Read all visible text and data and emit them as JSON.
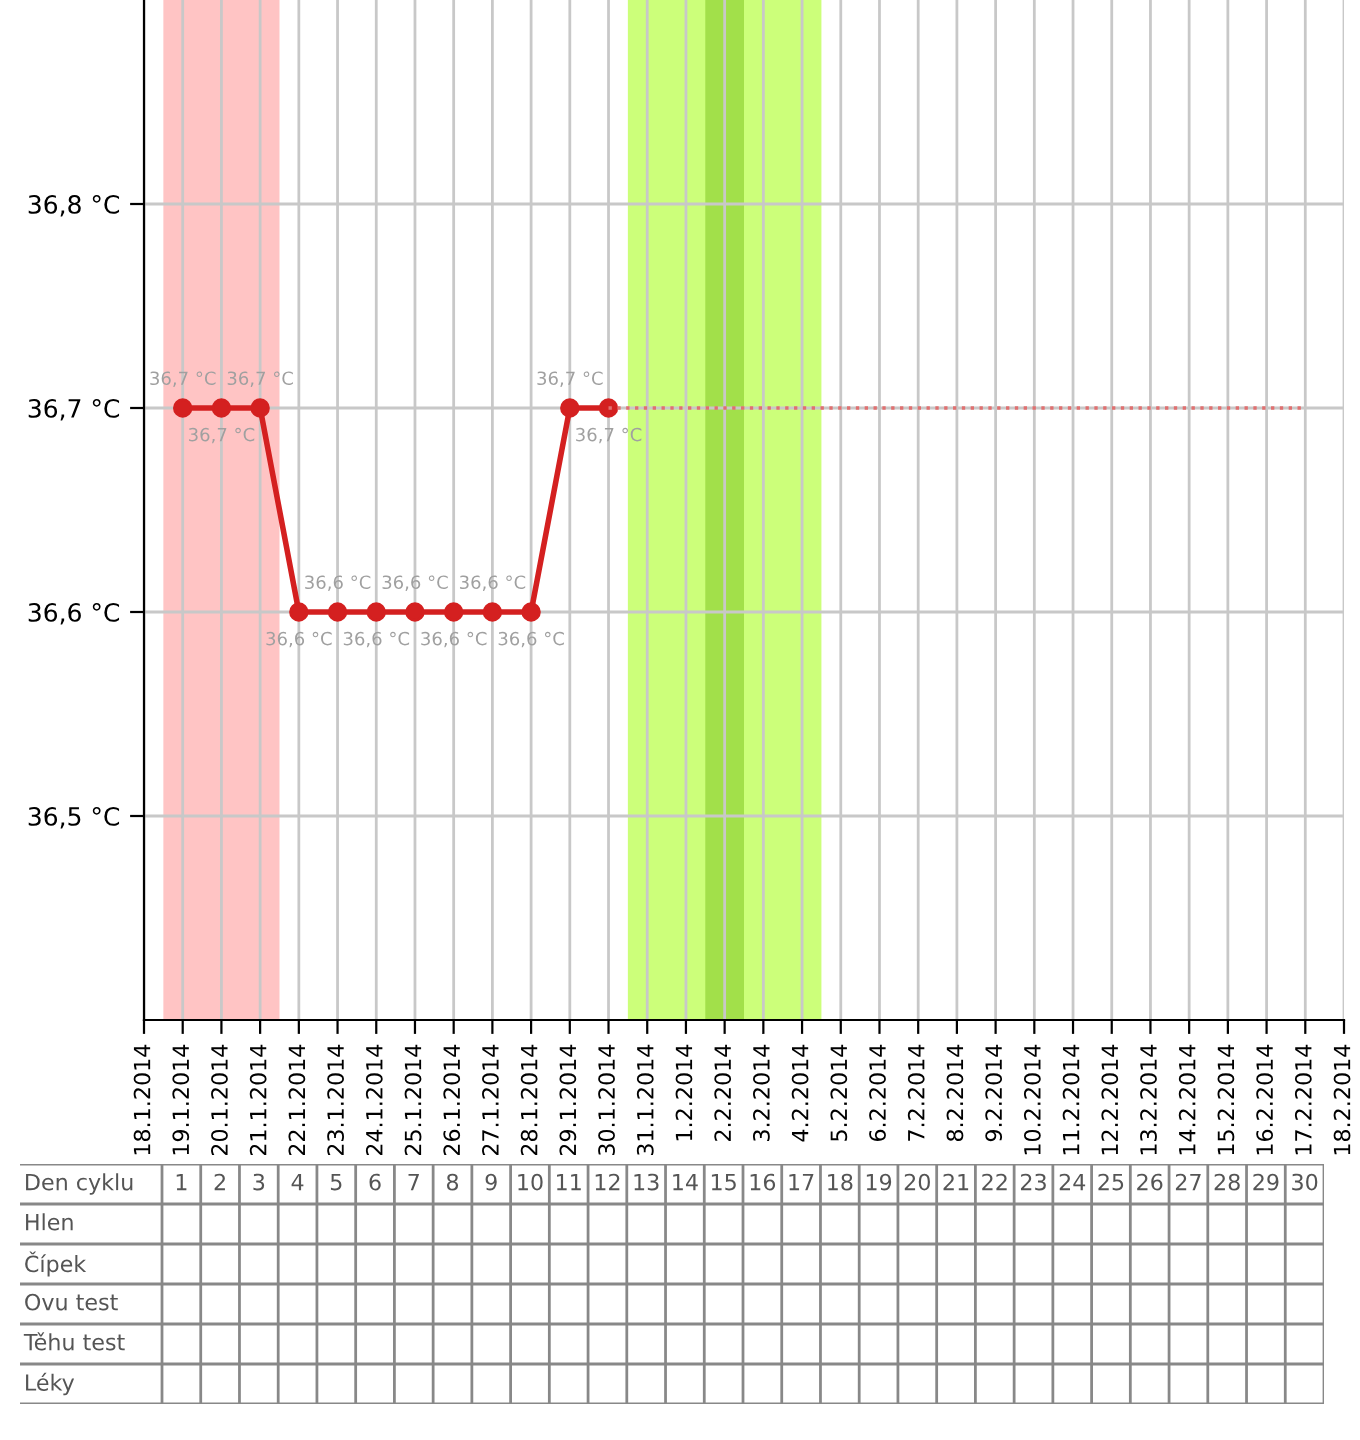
{
  "chart_data": [
    {
      "type": "line",
      "x": [
        "2014-01-19",
        "2014-01-20",
        "2014-01-21",
        "2014-01-22",
        "2014-01-23",
        "2014-01-24",
        "2014-01-25",
        "2014-01-26",
        "2014-01-27",
        "2014-01-28",
        "2014-01-29",
        "2014-01-30"
      ],
      "series": [
        {
          "color": "#d42020",
          "marker": "circle",
          "line_style": "solid",
          "values": [
            36.7,
            36.7,
            36.7,
            36.6,
            36.6,
            36.6,
            36.6,
            36.6,
            36.6,
            36.6,
            36.7,
            36.7
          ],
          "value_labels": [
            "36,7 °C",
            "36,7 °C",
            "36,7 °C",
            "36,6 °C",
            "36,6 °C",
            "36,6 °C",
            "36,6 °C",
            "36,6 °C",
            "36,6 °C",
            "36,6 °C",
            "36,7 °C",
            "36,7 °C"
          ]
        },
        {
          "color": "#e07070",
          "marker": "none",
          "line_style": "dotted",
          "x": [
            "2014-01-30",
            "2014-02-17"
          ],
          "values": [
            36.7,
            36.7
          ]
        }
      ],
      "xlim": [
        "2014-01-18",
        "2014-02-18"
      ],
      "xticks": [
        {
          "value": "2014-01-18",
          "label": "18.1.2014"
        },
        {
          "value": "2014-01-19",
          "label": "19.1.2014"
        },
        {
          "value": "2014-01-20",
          "label": "20.1.2014"
        },
        {
          "value": "2014-01-21",
          "label": "21.1.2014"
        },
        {
          "value": "2014-01-22",
          "label": "22.1.2014"
        },
        {
          "value": "2014-01-23",
          "label": "23.1.2014"
        },
        {
          "value": "2014-01-24",
          "label": "24.1.2014"
        },
        {
          "value": "2014-01-25",
          "label": "25.1.2014"
        },
        {
          "value": "2014-01-26",
          "label": "26.1.2014"
        },
        {
          "value": "2014-01-27",
          "label": "27.1.2014"
        },
        {
          "value": "2014-01-28",
          "label": "28.1.2014"
        },
        {
          "value": "2014-01-29",
          "label": "29.1.2014"
        },
        {
          "value": "2014-01-30",
          "label": "30.1.2014"
        },
        {
          "value": "2014-01-31",
          "label": "31.1.2014"
        },
        {
          "value": "2014-02-01",
          "label": "1.2.2014"
        },
        {
          "value": "2014-02-02",
          "label": "2.2.2014"
        },
        {
          "value": "2014-02-03",
          "label": "3.2.2014"
        },
        {
          "value": "2014-02-04",
          "label": "4.2.2014"
        },
        {
          "value": "2014-02-05",
          "label": "5.2.2014"
        },
        {
          "value": "2014-02-06",
          "label": "6.2.2014"
        },
        {
          "value": "2014-02-07",
          "label": "7.2.2014"
        },
        {
          "value": "2014-02-08",
          "label": "8.2.2014"
        },
        {
          "value": "2014-02-09",
          "label": "9.2.2014"
        },
        {
          "value": "2014-02-10",
          "label": "10.2.2014"
        },
        {
          "value": "2014-02-11",
          "label": "11.2.2014"
        },
        {
          "value": "2014-02-12",
          "label": "12.2.2014"
        },
        {
          "value": "2014-02-13",
          "label": "13.2.2014"
        },
        {
          "value": "2014-02-14",
          "label": "14.2.2014"
        },
        {
          "value": "2014-02-15",
          "label": "15.2.2014"
        },
        {
          "value": "2014-02-16",
          "label": "16.2.2014"
        },
        {
          "value": "2014-02-17",
          "label": "17.2.2014"
        },
        {
          "value": "2014-02-18",
          "label": "18.2.2014"
        }
      ],
      "ylim": [
        36.4,
        36.9
      ],
      "yticks": [
        {
          "value": 36.5,
          "label": "36,5 °C"
        },
        {
          "value": 36.6,
          "label": "36,6 °C"
        },
        {
          "value": 36.7,
          "label": "36,7 °C"
        },
        {
          "value": 36.8,
          "label": "36,8 °C"
        }
      ],
      "grid": true,
      "bands": [
        {
          "axis": "x",
          "from": "2014-01-18T12:00",
          "to": "2014-01-21T12:00",
          "color": "#ffc4c4"
        },
        {
          "axis": "x",
          "from": "2014-01-30T12:00",
          "to": "2014-02-04T12:00",
          "color": "#ccff7a"
        },
        {
          "axis": "x",
          "from": "2014-02-01T12:00",
          "to": "2014-02-02T12:00",
          "color": "#a2e04a"
        }
      ]
    },
    {
      "type": "heatmap",
      "xlabel": "Den cyklu",
      "categories": [
        "1",
        "2",
        "3",
        "4",
        "5",
        "6",
        "7",
        "8",
        "9",
        "10",
        "11",
        "12",
        "13",
        "14",
        "15",
        "16",
        "17",
        "18",
        "19",
        "20",
        "21",
        "22",
        "23",
        "24",
        "25",
        "26",
        "27",
        "28",
        "29",
        "30"
      ],
      "y_categories": [
        "Hlen",
        "Čípek",
        "Ovu test",
        "Těhu test",
        "Léky"
      ],
      "cells": [
        [
          null,
          null,
          null,
          null,
          null,
          null,
          null,
          null,
          null,
          null,
          null,
          null,
          null,
          null,
          null,
          null,
          null,
          null,
          null,
          null,
          null,
          null,
          null,
          null,
          null,
          null,
          null,
          null,
          null,
          null
        ],
        [
          null,
          null,
          null,
          null,
          null,
          null,
          null,
          null,
          null,
          null,
          null,
          null,
          null,
          null,
          null,
          null,
          null,
          null,
          null,
          null,
          null,
          null,
          null,
          null,
          null,
          null,
          null,
          null,
          null,
          null
        ],
        [
          null,
          null,
          null,
          null,
          null,
          null,
          null,
          null,
          null,
          null,
          null,
          null,
          null,
          null,
          null,
          null,
          null,
          null,
          null,
          null,
          null,
          null,
          null,
          null,
          null,
          null,
          null,
          null,
          null,
          null
        ],
        [
          null,
          null,
          null,
          null,
          null,
          null,
          null,
          null,
          null,
          null,
          null,
          null,
          null,
          null,
          null,
          null,
          null,
          null,
          null,
          null,
          null,
          null,
          null,
          null,
          null,
          null,
          null,
          null,
          null,
          null
        ],
        [
          null,
          null,
          null,
          null,
          null,
          null,
          null,
          null,
          null,
          null,
          null,
          null,
          null,
          null,
          null,
          null,
          null,
          null,
          null,
          null,
          null,
          null,
          null,
          null,
          null,
          null,
          null,
          null,
          null,
          null
        ]
      ]
    }
  ]
}
